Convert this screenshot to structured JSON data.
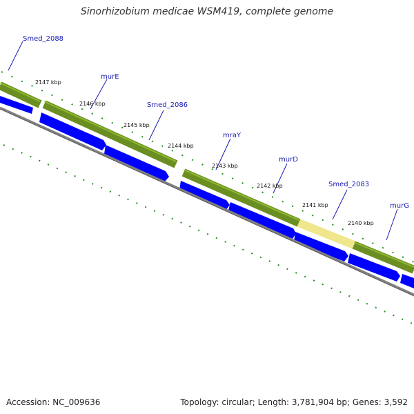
{
  "title": "Sinorhizobium medicae WSM419, complete genome",
  "footer": {
    "accession": "Accession: NC_009636",
    "stats": "Topology: circular; Length: 3,781,904 bp; Genes: 3,592"
  },
  "colors": {
    "gene_green": "#6b8e23",
    "gene_highlight": "#f0e68c",
    "cds_blue": "#0000ff",
    "backbone": "#808080",
    "tick_green": "#228b22",
    "label_blue": "#1a1ab4"
  },
  "gene_labels": [
    "Smed_2088",
    "murE",
    "Smed_2086",
    "mraY",
    "murD",
    "Smed_2083",
    "murG"
  ],
  "kbp_labels": [
    "2147 kbp",
    "2146 kbp",
    "2145 kbp",
    "2144 kbp",
    "2143 kbp",
    "2142 kbp",
    "2141 kbp",
    "2140 kbp"
  ]
}
